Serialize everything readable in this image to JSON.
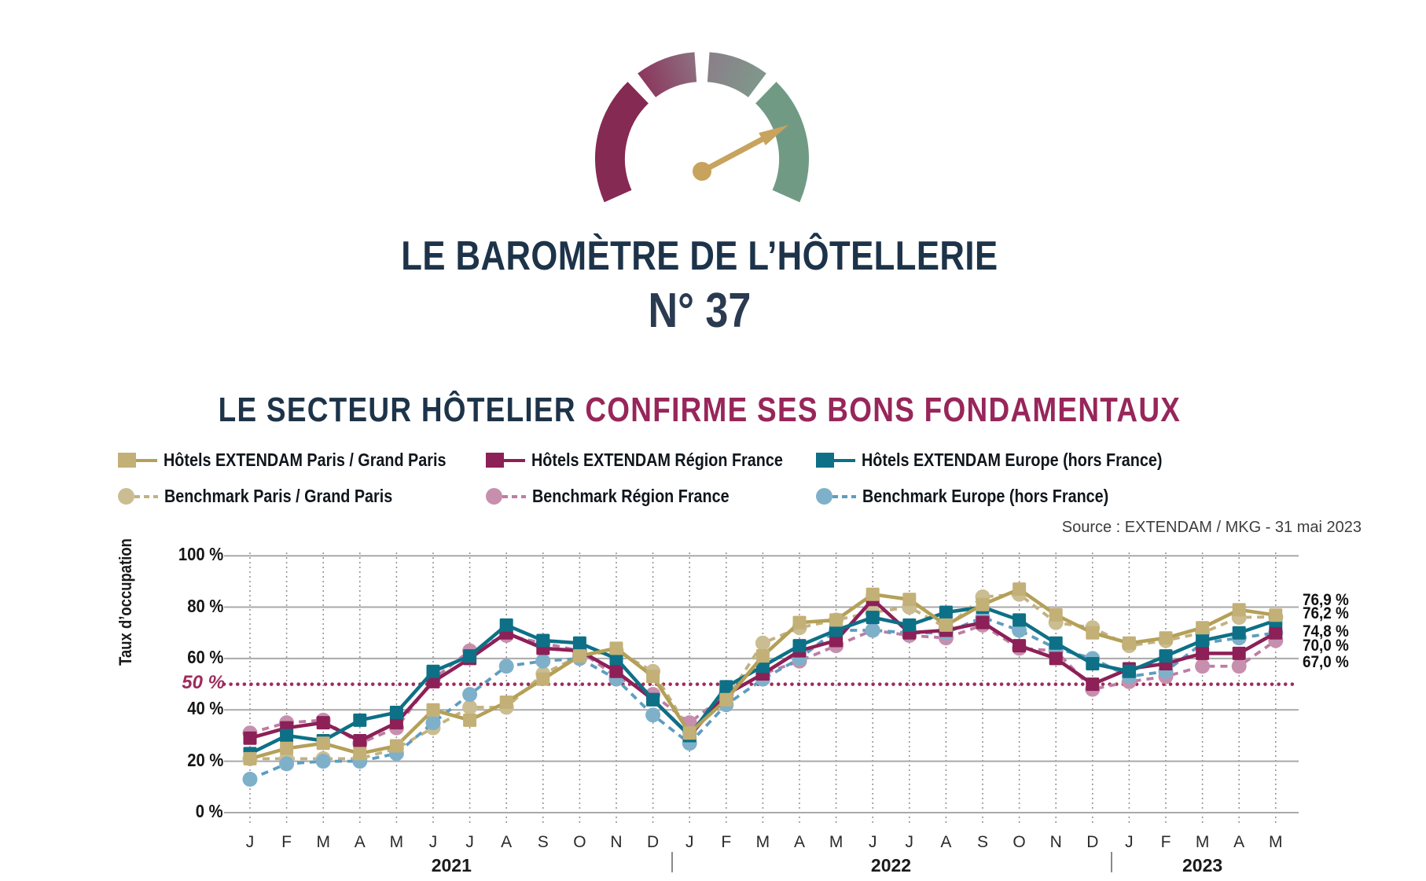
{
  "header": {
    "title": "LE BAROMÈTRE DE L’HÔTELLERIE",
    "issue": "N° 37",
    "subtitle_dark": "LE SECTEUR HÔTELIER ",
    "subtitle_accent": "CONFIRME SES BONS FONDAMENTAUX",
    "gauge": {
      "segment_colors": [
        "#852a53",
        "#8c3a60",
        "#8d6d7e",
        "#8a8089",
        "#7f978b",
        "#719a85"
      ],
      "needle_color": "#c7a35e"
    }
  },
  "accent_colors": {
    "navy": "#1d3349",
    "maroon": "#97265a",
    "reference_line": "#9e2b5c"
  },
  "source": "Source : EXTENDAM / MKG - 31 mai 2023",
  "chart_data": {
    "type": "line",
    "title": "",
    "xlabel": "",
    "ylabel": "Taux d’occupation",
    "ylim": [
      0,
      100
    ],
    "grid": true,
    "legend_position": "top",
    "y_ticks": [
      {
        "value": 100,
        "label": "100 %"
      },
      {
        "value": 80,
        "label": "80 %"
      },
      {
        "value": 60,
        "label": "60 %"
      },
      {
        "value": 40,
        "label": "40 %"
      },
      {
        "value": 20,
        "label": "20 %"
      },
      {
        "value": 0,
        "label": "0 %"
      }
    ],
    "reference_line": {
      "value": 50,
      "label": "50 %"
    },
    "x_months": [
      "J",
      "F",
      "M",
      "A",
      "M",
      "J",
      "J",
      "A",
      "S",
      "O",
      "N",
      "D",
      "J",
      "F",
      "M",
      "A",
      "M",
      "J",
      "J",
      "A",
      "S",
      "O",
      "N",
      "D",
      "J",
      "F",
      "M",
      "A",
      "M"
    ],
    "x_years": [
      {
        "label": "2021",
        "first_month_index": 0,
        "last_month_index": 11
      },
      {
        "label": "2022",
        "first_month_index": 12,
        "last_month_index": 23
      },
      {
        "label": "2023",
        "first_month_index": 24,
        "last_month_index": 28
      }
    ],
    "series": [
      {
        "id": "extendam_paris",
        "name": "Hôtels EXTENDAM Paris / Grand Paris",
        "style": "solid",
        "marker": "square",
        "color": "#b4a057",
        "marker_color": "#c3b077",
        "values": [
          21,
          25,
          27,
          23,
          26,
          40,
          36,
          43,
          52,
          61,
          64,
          53,
          31,
          44,
          61,
          74,
          75,
          85,
          83,
          73,
          81,
          87,
          77,
          70,
          66,
          68,
          72,
          79,
          76.9
        ]
      },
      {
        "id": "extendam_region",
        "name": "Hôtels EXTENDAM Région France",
        "style": "solid",
        "marker": "square",
        "color": "#8c2057",
        "marker_color": "#8c2057",
        "values": [
          29,
          33,
          35,
          28,
          35,
          51,
          60,
          70,
          64,
          63,
          55,
          44,
          30,
          46,
          54,
          63,
          67,
          83,
          70,
          71,
          74,
          65,
          60,
          50,
          56,
          58,
          62,
          62,
          70
        ]
      },
      {
        "id": "extendam_europe",
        "name": "Hôtels EXTENDAM Europe (hors France)",
        "style": "solid",
        "marker": "square",
        "color": "#0d7086",
        "marker_color": "#0d7086",
        "values": [
          23,
          30,
          28,
          36,
          39,
          55,
          61,
          73,
          67,
          66,
          60,
          44,
          30,
          49,
          57,
          65,
          71,
          76,
          73,
          78,
          80,
          75,
          66,
          58,
          55,
          61,
          67,
          70,
          74.8
        ]
      },
      {
        "id": "benchmark_paris",
        "name": "Benchmark Paris / Grand Paris",
        "style": "dashed",
        "marker": "circle",
        "color": "#c2b181",
        "marker_color": "#cbbd92",
        "values": [
          21,
          21,
          21,
          21,
          25,
          33,
          41,
          41,
          54,
          61,
          63,
          55,
          32,
          44,
          66,
          72,
          75,
          78,
          80,
          72,
          84,
          85,
          74,
          72,
          65,
          67,
          70,
          76,
          76.2
        ]
      },
      {
        "id": "benchmark_region",
        "name": "Benchmark Région France",
        "style": "dashed",
        "marker": "circle",
        "color": "#bd7da4",
        "marker_color": "#c78fae",
        "values": [
          31,
          35,
          36,
          27,
          33,
          52,
          63,
          69,
          66,
          63,
          53,
          46,
          35,
          46,
          54,
          59,
          65,
          71,
          69,
          68,
          73,
          64,
          63,
          48,
          51,
          53,
          57,
          57,
          67
        ]
      },
      {
        "id": "benchmark_europe",
        "name": "Benchmark Europe (hors France)",
        "style": "dashed",
        "marker": "circle",
        "color": "#5d9dbf",
        "marker_color": "#7fb0ca",
        "values": [
          13,
          19,
          20,
          20,
          23,
          35,
          46,
          57,
          59,
          60,
          52,
          38,
          27,
          42,
          52,
          60,
          71,
          71,
          70,
          70,
          76,
          71,
          64,
          60,
          53,
          55,
          66,
          68,
          70
        ]
      }
    ],
    "end_labels": [
      {
        "text": "76,9 %",
        "series": "extendam_paris"
      },
      {
        "text": "76,2 %",
        "series": "benchmark_paris"
      },
      {
        "text": "74,8 %",
        "series": "extendam_europe"
      },
      {
        "text": "70,0 %",
        "series": "extendam_region"
      },
      {
        "text": "67,0 %",
        "series": "benchmark_region"
      }
    ]
  }
}
